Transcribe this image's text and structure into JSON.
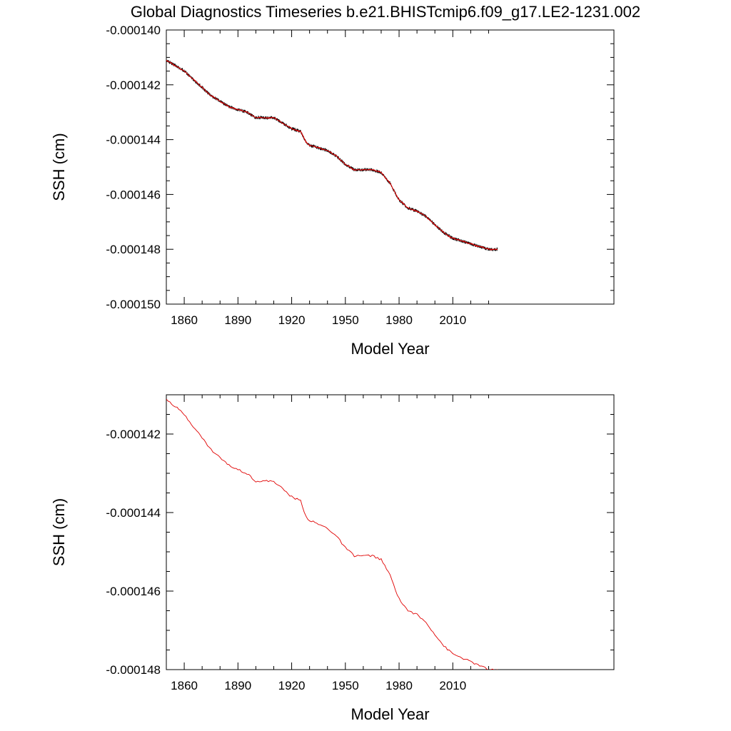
{
  "page_title": "Global Diagnostics Timeseries b.e21.BHISTcmip6.f09_g17.LE2-1231.002",
  "colors": {
    "monthly": "#000000",
    "annual": "#e00000",
    "axis": "#000000"
  },
  "chart_data": [
    {
      "type": "line",
      "title": "Global Diagnostics Timeseries b.e21.BHISTcmip6.f09_g17.LE2-1231.002",
      "xlabel": "Model Year",
      "ylabel": "SSH (cm)",
      "xlim": [
        1850,
        2100
      ],
      "ylim": [
        -0.00015,
        -0.00014
      ],
      "x_ticks": [
        1860,
        1890,
        1920,
        1950,
        1980,
        2010
      ],
      "x_tick_labels": [
        "1860",
        "1890",
        "1920",
        "1950",
        "1980",
        "2010"
      ],
      "y_ticks": [
        -0.00014,
        -0.000142,
        -0.000144,
        -0.000146,
        -0.000148,
        -0.00015
      ],
      "y_tick_labels": [
        "-0.000140",
        "-0.000142",
        "-0.000144",
        "-0.000146",
        "-0.000148",
        "-0.000150"
      ],
      "grid": false,
      "series": [
        {
          "color": "#000000",
          "resolution": "monthly",
          "x": [
            1850,
            1855,
            1860,
            1865,
            1870,
            1875,
            1880,
            1885,
            1890,
            1895,
            1900,
            1905,
            1910,
            1915,
            1920,
            1925,
            1928,
            1930,
            1935,
            1940,
            1945,
            1950,
            1955,
            1960,
            1965,
            1970,
            1975,
            1980,
            1985,
            1990,
            1995,
            2000,
            2005,
            2010,
            2015,
            2020,
            2025,
            2030,
            2035
          ],
          "values": [
            -0.0001411,
            -0.0001413,
            -0.0001415,
            -0.0001418,
            -0.0001421,
            -0.0001424,
            -0.0001426,
            -0.0001428,
            -0.0001429,
            -0.000143,
            -0.0001432,
            -0.0001432,
            -0.0001432,
            -0.0001434,
            -0.0001436,
            -0.0001437,
            -0.0001441,
            -0.0001442,
            -0.0001443,
            -0.0001444,
            -0.0001446,
            -0.0001449,
            -0.0001451,
            -0.0001451,
            -0.0001451,
            -0.0001452,
            -0.0001456,
            -0.0001462,
            -0.0001465,
            -0.0001466,
            -0.0001468,
            -0.0001471,
            -0.0001474,
            -0.0001476,
            -0.0001477,
            -0.0001478,
            -0.0001479,
            -0.000148,
            -0.000148
          ]
        },
        {
          "color": "#e00000",
          "resolution": "annual",
          "x": [
            1850,
            1855,
            1860,
            1865,
            1870,
            1875,
            1880,
            1885,
            1890,
            1895,
            1900,
            1905,
            1910,
            1915,
            1920,
            1925,
            1928,
            1930,
            1935,
            1940,
            1945,
            1950,
            1955,
            1960,
            1965,
            1970,
            1975,
            1980,
            1985,
            1990,
            1995,
            2000,
            2005,
            2010,
            2015,
            2020,
            2025,
            2030,
            2035
          ],
          "values": [
            -0.0001411,
            -0.0001413,
            -0.0001415,
            -0.0001418,
            -0.0001421,
            -0.0001424,
            -0.0001426,
            -0.0001428,
            -0.0001429,
            -0.000143,
            -0.0001432,
            -0.0001432,
            -0.0001432,
            -0.0001434,
            -0.0001436,
            -0.0001437,
            -0.0001441,
            -0.0001442,
            -0.0001443,
            -0.0001444,
            -0.0001446,
            -0.0001449,
            -0.0001451,
            -0.0001451,
            -0.0001451,
            -0.0001452,
            -0.0001456,
            -0.0001462,
            -0.0001465,
            -0.0001466,
            -0.0001468,
            -0.0001471,
            -0.0001474,
            -0.0001476,
            -0.0001477,
            -0.0001478,
            -0.0001479,
            -0.000148,
            -0.000148
          ]
        }
      ]
    },
    {
      "type": "line",
      "xlabel": "Model Year",
      "ylabel": "SSH (cm)",
      "xlim": [
        1850,
        2100
      ],
      "ylim": [
        -0.000148,
        -0.000141
      ],
      "x_ticks": [
        1860,
        1890,
        1920,
        1950,
        1980,
        2010
      ],
      "x_tick_labels": [
        "1860",
        "1890",
        "1920",
        "1950",
        "1980",
        "2010"
      ],
      "y_ticks": [
        -0.000142,
        -0.000144,
        -0.000146,
        -0.000148
      ],
      "y_tick_labels": [
        "-0.000142",
        "-0.000144",
        "-0.000146",
        "-0.000148"
      ],
      "grid": false,
      "series": [
        {
          "color": "#e00000",
          "resolution": "annual",
          "x": [
            1850,
            1855,
            1860,
            1865,
            1870,
            1875,
            1880,
            1885,
            1890,
            1895,
            1900,
            1905,
            1910,
            1915,
            1920,
            1925,
            1928,
            1930,
            1935,
            1940,
            1945,
            1950,
            1955,
            1960,
            1965,
            1970,
            1975,
            1980,
            1985,
            1990,
            1995,
            2000,
            2005,
            2010,
            2015,
            2020,
            2025,
            2030,
            2035
          ],
          "values": [
            -0.0001411,
            -0.0001413,
            -0.0001415,
            -0.0001418,
            -0.0001421,
            -0.0001424,
            -0.0001426,
            -0.0001428,
            -0.0001429,
            -0.000143,
            -0.0001432,
            -0.0001432,
            -0.0001432,
            -0.0001434,
            -0.0001436,
            -0.0001437,
            -0.0001441,
            -0.0001442,
            -0.0001443,
            -0.0001444,
            -0.0001446,
            -0.0001449,
            -0.0001451,
            -0.0001451,
            -0.0001451,
            -0.0001452,
            -0.0001456,
            -0.0001462,
            -0.0001465,
            -0.0001466,
            -0.0001468,
            -0.0001471,
            -0.0001474,
            -0.0001476,
            -0.0001477,
            -0.0001478,
            -0.0001479,
            -0.000148,
            -0.000148
          ]
        }
      ]
    }
  ]
}
